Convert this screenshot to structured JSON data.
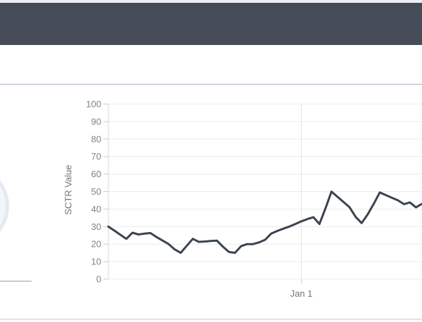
{
  "header": {
    "title": ""
  },
  "colors": {
    "header_bg": "#454b57",
    "top_strip": "#eef0f6",
    "panel_divider": "#cbd4dc",
    "bottom_divider": "#dce3ea",
    "left_rule": "#c3cdd8",
    "gauge_fill": "#f3f6f9",
    "gauge_edge": "#e4eaf1",
    "grid_line": "#ebeced",
    "vgrid_line": "#e0e2e5",
    "axis_line": "#d6d8db",
    "tick_mark": "#cbcdd1",
    "tick_text": "#7c838b",
    "series_line": "#3b4350"
  },
  "chart_data": {
    "type": "line",
    "title": "",
    "xlabel": "",
    "ylabel": "SCTR Value",
    "ylim": [
      0,
      100
    ],
    "yticks": [
      0,
      10,
      20,
      30,
      40,
      50,
      60,
      70,
      80,
      90,
      100
    ],
    "grid": true,
    "legend": "none",
    "x_axis": {
      "tick_label": "Jan 1",
      "tick_index": 32
    },
    "series": [
      {
        "name": "SCTR Value",
        "color": "#3b4350",
        "values": [
          30,
          27.7,
          25.3,
          23,
          26.5,
          25.5,
          26,
          26.3,
          24,
          22,
          20,
          17,
          15,
          19,
          23,
          21.3,
          21.5,
          21.8,
          22,
          18.5,
          15.5,
          15,
          18.8,
          20,
          20,
          21,
          22.5,
          26,
          27.5,
          28.8,
          30,
          31.5,
          33,
          34.3,
          35.4,
          31.5,
          40.5,
          50,
          47,
          44,
          41,
          35.5,
          32,
          37,
          43,
          49.5,
          48,
          46.5,
          45,
          42.8,
          43.8,
          41,
          43
        ]
      }
    ]
  }
}
